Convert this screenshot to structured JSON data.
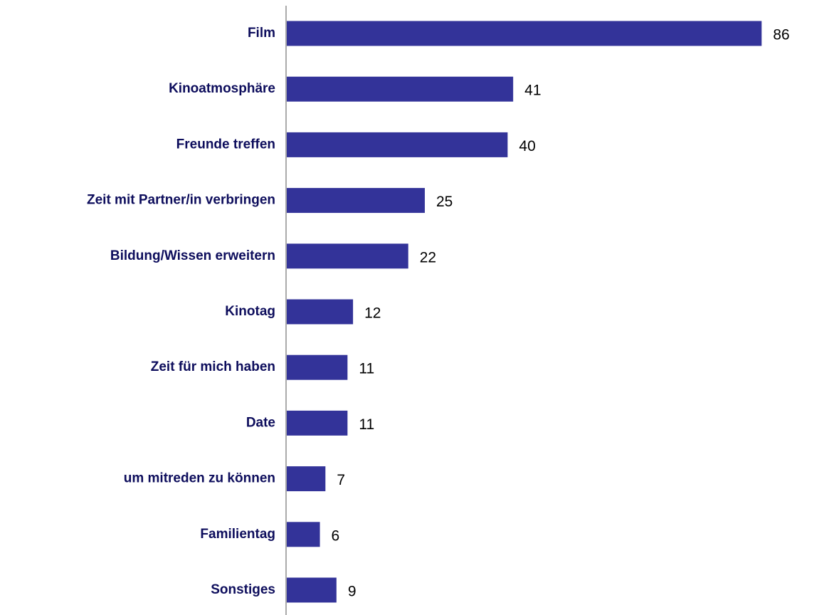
{
  "chart_data": {
    "type": "hbar",
    "categories": [
      "Film",
      "Kinoatmosphäre",
      "Freunde treffen",
      "Zeit mit Partner/in verbringen",
      "Bildung/Wissen erweitern",
      "Kinotag",
      "Zeit für mich haben",
      "Date",
      "um mitreden zu können",
      "Familientag",
      "Sonstiges"
    ],
    "values": [
      86,
      41,
      40,
      25,
      22,
      12,
      11,
      11,
      7,
      6,
      9
    ],
    "color": "#333399"
  }
}
